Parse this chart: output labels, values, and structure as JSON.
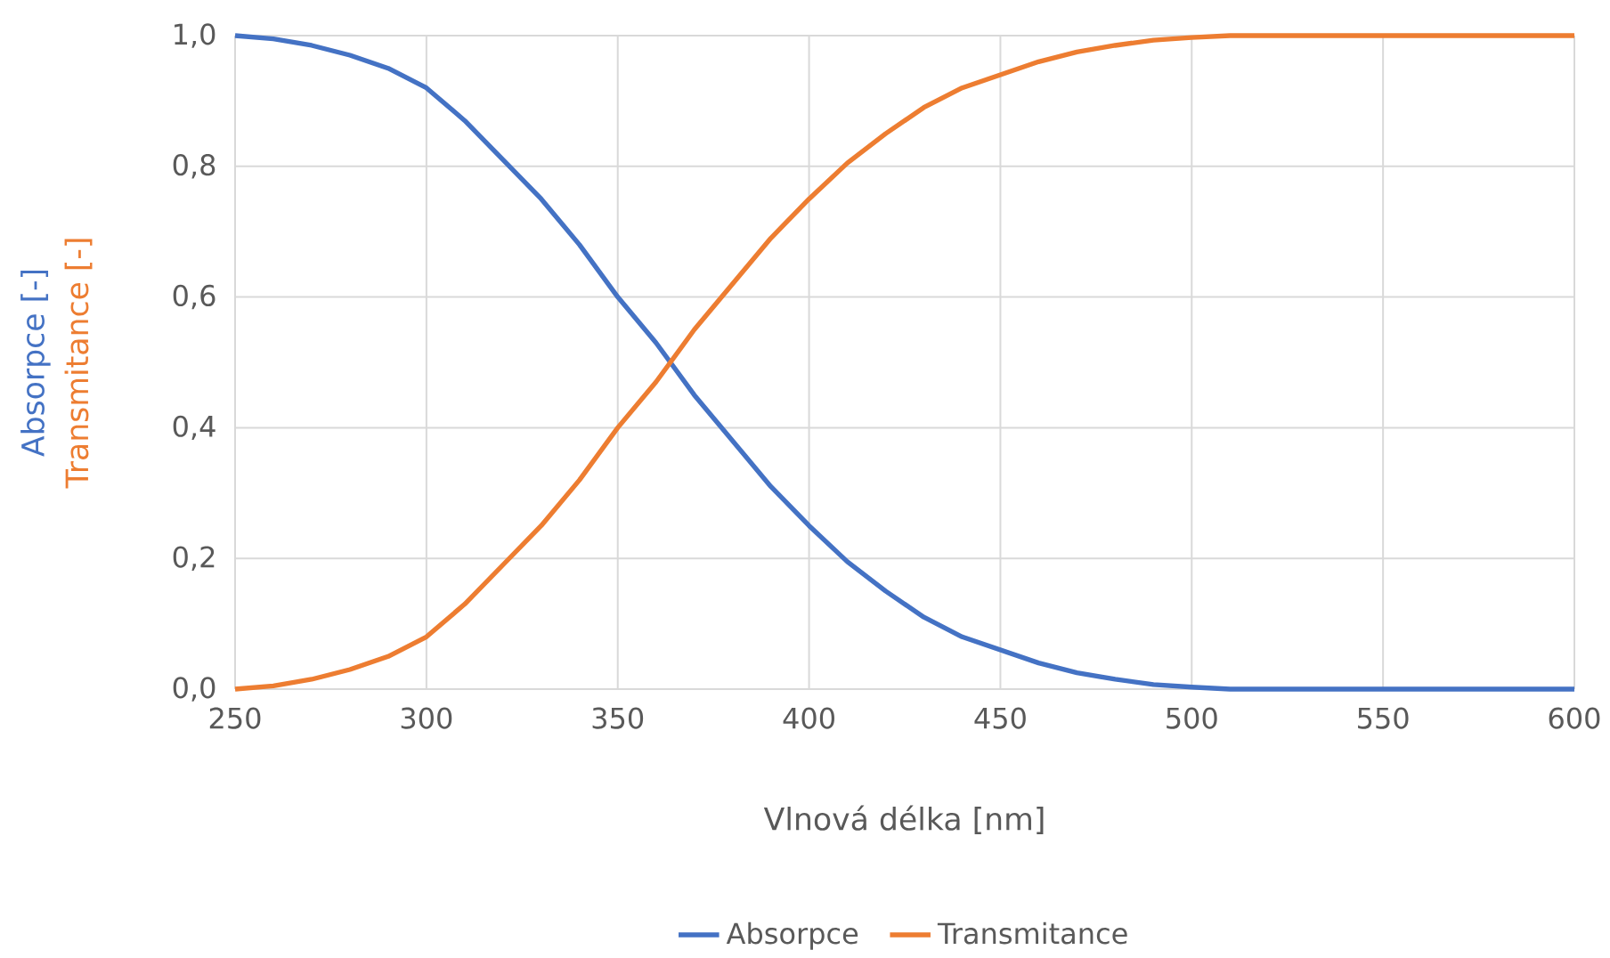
{
  "chart_data": {
    "type": "line",
    "xlabel": "Vlnová délka [nm]",
    "ylabel": "Absorpce [-]",
    "annotations": [
      "Transmitance [-]"
    ],
    "x": [
      250,
      260,
      270,
      280,
      290,
      300,
      310,
      320,
      330,
      340,
      350,
      360,
      370,
      380,
      390,
      400,
      410,
      420,
      430,
      440,
      450,
      460,
      470,
      480,
      490,
      500,
      510,
      520,
      540,
      560,
      580,
      600
    ],
    "series": [
      {
        "name": "Absorpce",
        "color": "#4472c4",
        "values": [
          1.0,
          0.995,
          0.985,
          0.97,
          0.95,
          0.92,
          0.87,
          0.81,
          0.75,
          0.68,
          0.6,
          0.53,
          0.45,
          0.38,
          0.31,
          0.25,
          0.195,
          0.15,
          0.11,
          0.08,
          0.06,
          0.04,
          0.025,
          0.015,
          0.007,
          0.003,
          0.0,
          0.0,
          0.0,
          0.0,
          0.0,
          0.0
        ]
      },
      {
        "name": "Transmitance",
        "color": "#ed7d31",
        "values": [
          0.0,
          0.005,
          0.015,
          0.03,
          0.05,
          0.08,
          0.13,
          0.19,
          0.25,
          0.32,
          0.4,
          0.47,
          0.55,
          0.62,
          0.69,
          0.75,
          0.805,
          0.85,
          0.89,
          0.92,
          0.94,
          0.96,
          0.975,
          0.985,
          0.993,
          0.997,
          1.0,
          1.0,
          1.0,
          1.0,
          1.0,
          1.0
        ]
      }
    ],
    "xlim": [
      250,
      600
    ],
    "xticks": [
      250,
      300,
      350,
      400,
      450,
      500,
      550,
      600
    ],
    "ylim": [
      0,
      1
    ],
    "yticks": [
      {
        "value": 0,
        "label": "0,0"
      },
      {
        "value": 0.2,
        "label": "0,2"
      },
      {
        "value": 0.4,
        "label": "0,4"
      },
      {
        "value": 0.6,
        "label": "0,6"
      },
      {
        "value": 0.8,
        "label": "0,8"
      },
      {
        "value": 1,
        "label": "1,0"
      }
    ],
    "grid": true,
    "legend": "bottom",
    "marker": "none",
    "line_style": "solid"
  }
}
